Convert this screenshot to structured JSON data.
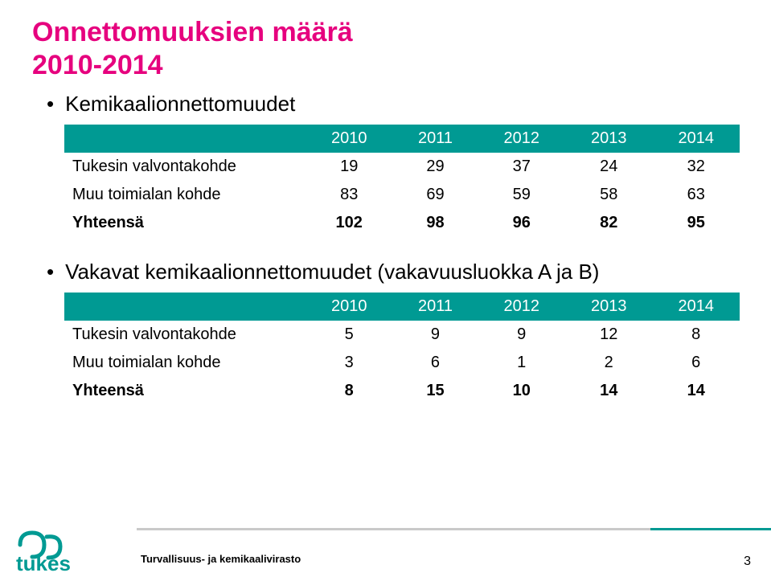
{
  "title_color": "#e6007e",
  "header_color": "#009a93",
  "text_color": "#000000",
  "bar_grey": "#c9c9c9",
  "bar_teal": "#009a93",
  "logo_color": "#009a93",
  "title_line1": "Onnettomuuksien määrä",
  "title_line2": "2010-2014",
  "bullet1": "Kemikaalionnettomuudet",
  "bullet2": "Vakavat kemikaalionnettomuudet (vakavuusluokka A ja B)",
  "table1": {
    "columns": [
      "",
      "2010",
      "2011",
      "2012",
      "2013",
      "2014"
    ],
    "rows": [
      [
        "Tukesin valvontakohde",
        "19",
        "29",
        "37",
        "24",
        "32"
      ],
      [
        "Muu toimialan kohde",
        "83",
        "69",
        "59",
        "58",
        "63"
      ],
      [
        "Yhteensä",
        "102",
        "98",
        "96",
        "82",
        "95"
      ]
    ]
  },
  "table2": {
    "columns": [
      "",
      "2010",
      "2011",
      "2012",
      "2013",
      "2014"
    ],
    "rows": [
      [
        "Tukesin valvontakohde",
        "5",
        "9",
        "9",
        "12",
        "8"
      ],
      [
        "Muu toimialan kohde",
        "3",
        "6",
        "1",
        "2",
        "6"
      ],
      [
        "Yhteensä",
        "8",
        "15",
        "10",
        "14",
        "14"
      ]
    ]
  },
  "footer_label": "Turvallisuus- ja kemikaalivirasto",
  "page_number": "3",
  "logo_text": "tukes"
}
